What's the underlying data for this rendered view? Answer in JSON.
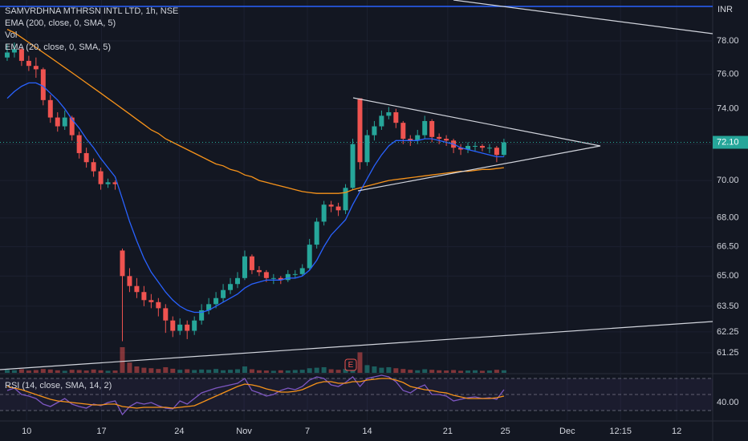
{
  "chart_data": {
    "type": "candlestick",
    "title": "SAMVRDHNA MTHRSN INTL LTD, 1h, NSE",
    "indicators": [
      "EMA (200, close, 0, SMA, 5)",
      "Vol",
      "EMA (20, close, 0, SMA, 5)"
    ],
    "currency": "INR",
    "log_scale": true,
    "up_color": "#26a69a",
    "down_color": "#ef5350",
    "xlim": [
      -1,
      98
    ],
    "xticks": [
      {
        "value": 2.7,
        "label": "10"
      },
      {
        "value": 13.1,
        "label": "17"
      },
      {
        "value": 23.9,
        "label": "24"
      },
      {
        "value": 32.9,
        "label": "Nov"
      },
      {
        "value": 41.7,
        "label": "7"
      },
      {
        "value": 50,
        "label": "14"
      },
      {
        "value": 61.2,
        "label": "21"
      },
      {
        "value": 69.2,
        "label": "25"
      },
      {
        "value": 77.8,
        "label": "Dec"
      },
      {
        "value": 85.2,
        "label": "12:15"
      },
      {
        "value": 93,
        "label": "12"
      }
    ],
    "ylim": [
      60.49,
      80.51
    ],
    "yticks": [
      {
        "value": 78,
        "label": "78.00"
      },
      {
        "value": 76,
        "label": "76.00"
      },
      {
        "value": 74,
        "label": "74.00"
      },
      {
        "value": 72,
        "label": "72.00"
      },
      {
        "value": 70,
        "label": "70.00"
      },
      {
        "value": 68,
        "label": "68.00"
      },
      {
        "value": 66.5,
        "label": "66.50"
      },
      {
        "value": 65,
        "label": "65.00"
      },
      {
        "value": 63.5,
        "label": "63.50"
      },
      {
        "value": 62.25,
        "label": "62.25"
      },
      {
        "value": 61.25,
        "label": "61.25"
      }
    ],
    "current_price": {
      "value": 72.1,
      "label": "72.10"
    },
    "candles": [
      [
        77.0,
        77.8,
        76.8,
        77.3
      ],
      [
        77.3,
        77.9,
        77.0,
        77.5
      ],
      [
        77.5,
        77.6,
        76.5,
        76.8
      ],
      [
        76.8,
        77.1,
        76.2,
        76.5
      ],
      [
        76.5,
        77.0,
        75.8,
        76.3
      ],
      [
        76.3,
        76.4,
        74.2,
        74.5
      ],
      [
        74.5,
        74.8,
        73.2,
        73.5
      ],
      [
        73.5,
        73.8,
        72.7,
        73.0
      ],
      [
        73.0,
        73.9,
        72.8,
        73.5
      ],
      [
        73.5,
        73.6,
        72.2,
        72.5
      ],
      [
        72.5,
        72.7,
        71.2,
        71.5
      ],
      [
        71.5,
        71.8,
        70.7,
        71.0
      ],
      [
        71.0,
        71.2,
        70.2,
        70.5
      ],
      [
        70.5,
        70.7,
        69.5,
        69.8
      ],
      [
        69.8,
        70.1,
        69.6,
        69.9
      ],
      [
        69.9,
        70.0,
        69.5,
        69.8
      ],
      [
        66.3,
        66.4,
        61.8,
        65.0
      ],
      [
        65.0,
        65.4,
        64.2,
        64.5
      ],
      [
        64.5,
        64.9,
        63.9,
        64.2
      ],
      [
        64.2,
        64.5,
        63.5,
        63.8
      ],
      [
        63.8,
        64.1,
        63.4,
        63.7
      ],
      [
        63.7,
        63.9,
        63.0,
        63.4
      ],
      [
        63.4,
        63.6,
        62.2,
        62.8
      ],
      [
        62.8,
        63.0,
        62.0,
        62.3
      ],
      [
        62.3,
        62.9,
        62.1,
        62.6
      ],
      [
        62.6,
        62.8,
        61.9,
        62.3
      ],
      [
        62.3,
        63.0,
        62.1,
        62.8
      ],
      [
        62.8,
        63.6,
        62.6,
        63.3
      ],
      [
        63.3,
        63.9,
        63.1,
        63.6
      ],
      [
        63.6,
        64.2,
        63.4,
        63.9
      ],
      [
        63.9,
        64.6,
        63.7,
        64.3
      ],
      [
        64.3,
        64.9,
        64.1,
        64.6
      ],
      [
        64.6,
        65.2,
        64.4,
        64.9
      ],
      [
        64.9,
        66.3,
        64.8,
        66.0
      ],
      [
        66.0,
        66.1,
        65.1,
        65.3
      ],
      [
        65.3,
        65.5,
        65.0,
        65.2
      ],
      [
        65.2,
        65.3,
        64.7,
        64.9
      ],
      [
        64.9,
        65.1,
        64.6,
        64.9
      ],
      [
        64.9,
        65.0,
        64.6,
        64.8
      ],
      [
        64.8,
        65.3,
        64.7,
        65.1
      ],
      [
        65.1,
        65.3,
        64.9,
        65.1
      ],
      [
        65.1,
        65.6,
        65.0,
        65.4
      ],
      [
        65.4,
        66.9,
        65.3,
        66.6
      ],
      [
        66.6,
        68.0,
        66.4,
        67.8
      ],
      [
        67.8,
        68.9,
        67.6,
        68.7
      ],
      [
        68.7,
        68.9,
        68.3,
        68.6
      ],
      [
        68.6,
        68.8,
        68.1,
        68.4
      ],
      [
        68.4,
        69.8,
        68.2,
        69.6
      ],
      [
        69.6,
        72.3,
        69.5,
        72.0
      ],
      [
        74.6,
        74.6,
        70.6,
        71.0
      ],
      [
        71.0,
        72.8,
        70.8,
        72.5
      ],
      [
        72.5,
        73.3,
        72.2,
        73.0
      ],
      [
        73.0,
        73.9,
        72.8,
        73.6
      ],
      [
        73.6,
        74.1,
        73.4,
        73.8
      ],
      [
        73.8,
        74.0,
        72.9,
        73.2
      ],
      [
        73.2,
        73.3,
        72.0,
        72.3
      ],
      [
        72.3,
        72.5,
        71.9,
        72.2
      ],
      [
        72.2,
        72.8,
        72.0,
        72.5
      ],
      [
        72.5,
        73.6,
        72.3,
        73.3
      ],
      [
        73.3,
        73.4,
        72.1,
        72.4
      ],
      [
        72.4,
        72.6,
        72.0,
        72.3
      ],
      [
        72.3,
        72.5,
        71.9,
        72.2
      ],
      [
        72.2,
        72.3,
        71.5,
        71.8
      ],
      [
        71.8,
        72.0,
        71.4,
        71.7
      ],
      [
        71.7,
        72.1,
        71.5,
        71.9
      ],
      [
        71.9,
        72.1,
        71.6,
        71.9
      ],
      [
        71.9,
        72.0,
        71.6,
        71.8
      ],
      [
        71.8,
        72.0,
        71.5,
        71.8
      ],
      [
        71.8,
        71.9,
        71.0,
        71.4
      ],
      [
        71.4,
        72.3,
        71.3,
        72.1
      ]
    ],
    "series": [
      {
        "name": "EMA 200",
        "color": "#f7931a",
        "values": [
          78.7,
          78.5,
          78.2,
          77.9,
          77.6,
          77.3,
          77.0,
          76.7,
          76.4,
          76.1,
          75.8,
          75.5,
          75.2,
          74.9,
          74.6,
          74.3,
          74.0,
          73.7,
          73.4,
          73.1,
          72.8,
          72.6,
          72.3,
          72.1,
          71.9,
          71.7,
          71.5,
          71.3,
          71.1,
          70.9,
          70.8,
          70.6,
          70.5,
          70.3,
          70.2,
          70.0,
          69.9,
          69.8,
          69.7,
          69.6,
          69.5,
          69.4,
          69.35,
          69.3,
          69.3,
          69.3,
          69.3,
          69.35,
          69.5,
          69.6,
          69.7,
          69.8,
          69.9,
          70.0,
          70.05,
          70.1,
          70.15,
          70.2,
          70.25,
          70.3,
          70.35,
          70.4,
          70.45,
          70.5,
          70.5,
          70.55,
          70.6,
          70.6,
          70.65,
          70.7
        ]
      },
      {
        "name": "EMA 20",
        "color": "#2962ff",
        "values": [
          74.6,
          75.0,
          75.3,
          75.5,
          75.5,
          75.3,
          74.9,
          74.5,
          74.0,
          73.4,
          72.9,
          72.3,
          71.8,
          71.2,
          70.7,
          70.2,
          69.0,
          67.8,
          66.8,
          65.9,
          65.2,
          64.7,
          64.2,
          63.8,
          63.5,
          63.3,
          63.2,
          63.2,
          63.3,
          63.5,
          63.7,
          63.9,
          64.1,
          64.4,
          64.6,
          64.7,
          64.8,
          64.8,
          64.8,
          64.9,
          64.9,
          65.0,
          65.3,
          65.8,
          66.5,
          67.1,
          67.5,
          67.9,
          68.7,
          69.4,
          70.1,
          70.8,
          71.4,
          71.9,
          72.2,
          72.2,
          72.2,
          72.2,
          72.3,
          72.3,
          72.2,
          72.1,
          72.0,
          71.8,
          71.7,
          71.6,
          71.5,
          71.4,
          71.3,
          71.3
        ]
      }
    ],
    "volume": [
      12,
      10,
      14,
      9,
      11,
      15,
      13,
      10,
      8,
      12,
      11,
      9,
      13,
      10,
      8,
      9,
      100,
      40,
      25,
      20,
      18,
      15,
      22,
      16,
      12,
      14,
      11,
      13,
      12,
      15,
      10,
      12,
      14,
      25,
      14,
      10,
      9,
      8,
      10,
      9,
      11,
      12,
      18,
      20,
      22,
      14,
      12,
      15,
      35,
      80,
      30,
      25,
      20,
      22,
      18,
      15,
      12,
      10,
      14,
      12,
      10,
      9,
      11,
      8,
      9,
      10,
      8,
      9,
      12,
      10
    ],
    "volume_ylim": [
      0,
      100
    ],
    "rsi": {
      "title": "RSI (14, close, SMA, 14, 2)",
      "ylim": [
        20,
        76
      ],
      "yticks": [
        {
          "value": 40,
          "label": "40.00"
        }
      ],
      "bands": [
        70,
        50,
        30
      ],
      "values": [
        55,
        58,
        50,
        48,
        45,
        38,
        35,
        40,
        45,
        38,
        35,
        33,
        38,
        36,
        40,
        42,
        25,
        35,
        40,
        38,
        40,
        36,
        33,
        32,
        42,
        38,
        45,
        52,
        55,
        58,
        60,
        62,
        64,
        70,
        55,
        52,
        48,
        50,
        55,
        58,
        56,
        60,
        68,
        72,
        70,
        62,
        60,
        65,
        72,
        60,
        70,
        72,
        74,
        72,
        66,
        55,
        52,
        58,
        62,
        50,
        50,
        48,
        42,
        44,
        46,
        47,
        45,
        46,
        44,
        56
      ],
      "sma": [
        60,
        58,
        56,
        53,
        50,
        47,
        44,
        42,
        41,
        40,
        39,
        38,
        37,
        37,
        38,
        38,
        35,
        34,
        33,
        34,
        34,
        34,
        34,
        33,
        34,
        35,
        36,
        40,
        44,
        48,
        52,
        56,
        60,
        63,
        62,
        60,
        57,
        55,
        53,
        53,
        54,
        56,
        60,
        64,
        66,
        66,
        64,
        64,
        66,
        66,
        68,
        69,
        70,
        70,
        68,
        65,
        60,
        58,
        56,
        55,
        53,
        52,
        49,
        47,
        45,
        45,
        45,
        45,
        46,
        48
      ]
    }
  }
}
